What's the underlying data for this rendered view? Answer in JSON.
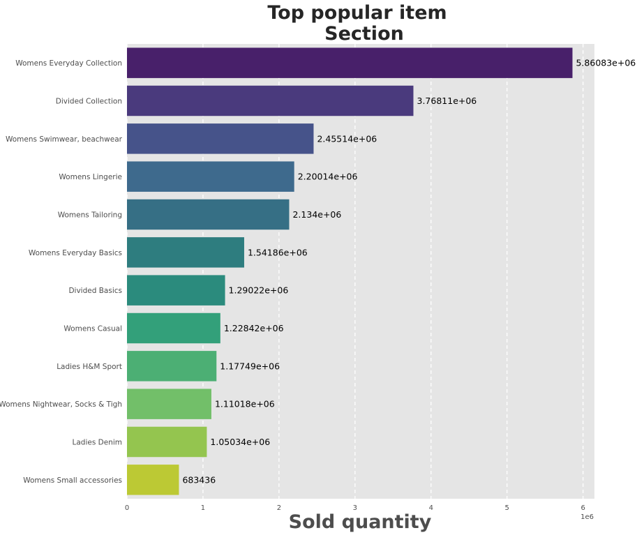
{
  "chart_data": {
    "type": "bar",
    "orientation": "horizontal",
    "title_lines": [
      "Top popular item",
      "Section"
    ],
    "xlabel": "Sold quantity",
    "ylabel": "",
    "x_offset_text": "1e6",
    "xlim": [
      0,
      6150000
    ],
    "x_ticks": [
      0,
      1000000,
      2000000,
      3000000,
      4000000,
      5000000,
      6000000
    ],
    "x_tick_labels": [
      "0",
      "1",
      "2",
      "3",
      "4",
      "5",
      "6"
    ],
    "grid": "x, dashed, white",
    "background": "#e5e5e5",
    "categories": [
      "Womens Everyday Collection",
      "Divided Collection",
      "Womens Swimwear, beachwear",
      "Womens Lingerie",
      "Womens Tailoring",
      "Womens Everyday Basics",
      "Divided Basics",
      "Womens Casual",
      "Ladies H&M Sport",
      "Womens Nightwear, Socks & Tigh",
      "Ladies Denim",
      "Womens Small accessories"
    ],
    "values": [
      5860830,
      3768110,
      2455140,
      2200140,
      2134000,
      1541860,
      1290220,
      1228420,
      1177490,
      1110180,
      1050340,
      683436
    ],
    "value_labels": [
      "5.86083e+06",
      "3.76811e+06",
      "2.45514e+06",
      "2.20014e+06",
      "2.134e+06",
      "1.54186e+06",
      "1.29022e+06",
      "1.22842e+06",
      "1.17749e+06",
      "1.11018e+06",
      "1.05034e+06",
      "683436"
    ],
    "colors": [
      "#48206a",
      "#4a3a7d",
      "#46538a",
      "#3e6a8d",
      "#366f85",
      "#2e7d7f",
      "#2b8b7d",
      "#33a07a",
      "#4caf74",
      "#72bf69",
      "#94c54f",
      "#bcc934"
    ]
  }
}
